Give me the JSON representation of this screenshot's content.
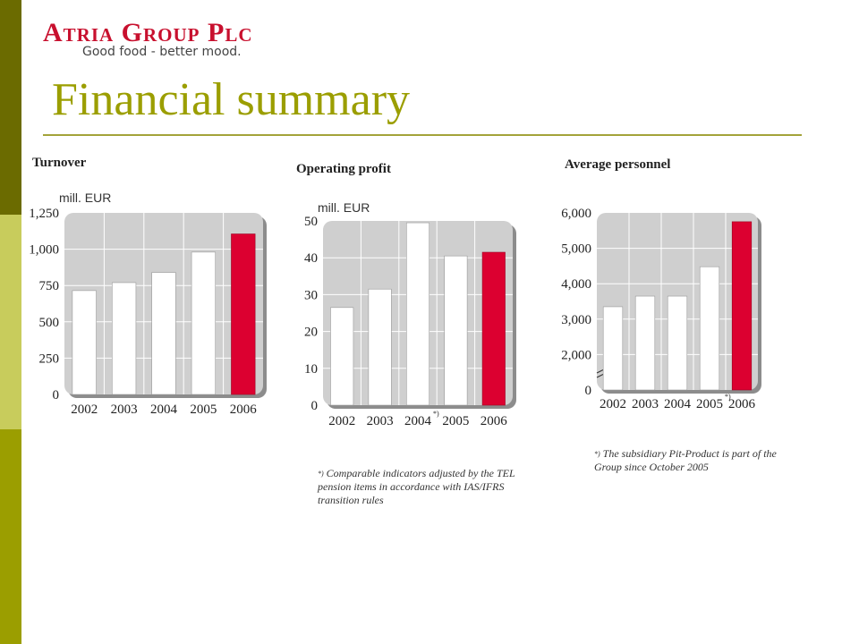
{
  "sidebar": {
    "colors": [
      "#6b6b00",
      "#c8cc5c",
      "#9b9e00"
    ]
  },
  "logo": {
    "name": "Atria Group Plc",
    "tagline": "Good food - better mood."
  },
  "page": {
    "title": "Financial summary"
  },
  "colors": {
    "highlight_bar": "#dc0030",
    "bar": "#ffffff",
    "plot_bg": "#cfcfcf",
    "title": "#9b9e00"
  },
  "chart_data": [
    {
      "type": "bar",
      "title": "Turnover",
      "ylabel": "mill. EUR",
      "categories": [
        "2002",
        "2003",
        "2004",
        "2005",
        "2006"
      ],
      "category_marks": [
        "",
        "",
        "",
        "",
        ""
      ],
      "values": [
        715,
        770,
        840,
        980,
        1105
      ],
      "highlight_index": 4,
      "ylim": [
        0,
        1250
      ],
      "yticks": [
        0,
        250,
        500,
        750,
        1000,
        1250
      ],
      "ytick_labels": [
        "0",
        "250",
        "500",
        "750",
        "1,000",
        "1,250"
      ],
      "axis_break": false,
      "grid": true
    },
    {
      "type": "bar",
      "title": "Operating profit",
      "ylabel": "mill. EUR",
      "categories": [
        "2002",
        "2003",
        "2004",
        "2005",
        "2006"
      ],
      "category_marks": [
        "",
        "",
        "*)",
        "",
        ""
      ],
      "values": [
        26.5,
        31.5,
        49.5,
        40.5,
        41.5
      ],
      "highlight_index": 4,
      "ylim": [
        0,
        50
      ],
      "yticks": [
        0,
        10,
        20,
        30,
        40,
        50
      ],
      "ytick_labels": [
        "0",
        "10",
        "20",
        "30",
        "40",
        "50"
      ],
      "axis_break": false,
      "grid": true,
      "footnote": "Comparable indicators adjusted by the TEL pension items in accordance with IAS/IFRS transition rules",
      "footnote_mark": "*)"
    },
    {
      "type": "bar",
      "title": "Average personnel",
      "ylabel": "",
      "categories": [
        "2002",
        "2003",
        "2004",
        "2005",
        "2006"
      ],
      "category_marks": [
        "",
        "",
        "",
        "*)",
        ""
      ],
      "values": [
        3350,
        3650,
        3650,
        4480,
        5750
      ],
      "highlight_index": 4,
      "ylim": [
        1000,
        6000
      ],
      "yticks": [
        2000,
        3000,
        4000,
        5000,
        6000
      ],
      "ytick_labels": [
        "2,000",
        "3,000",
        "4,000",
        "5,000",
        "6,000"
      ],
      "zero_label": "0",
      "axis_break": true,
      "grid": true,
      "footnote": "The subsidiary Pit-Product is part of the Group since October 2005",
      "footnote_mark": "*)"
    }
  ]
}
